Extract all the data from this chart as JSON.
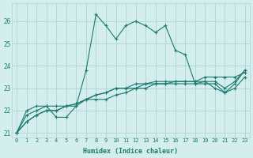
{
  "title": "",
  "xlabel": "Humidex (Indice chaleur)",
  "ylabel": "",
  "bg_color": "#d4eeee",
  "grid_color": "#aed4d4",
  "line_color": "#1a7a6e",
  "tick_color": "#1a7a6e",
  "xlim": [
    -0.5,
    23.5
  ],
  "ylim": [
    20.8,
    26.8
  ],
  "yticks": [
    21,
    22,
    23,
    24,
    25,
    26
  ],
  "xticks": [
    0,
    1,
    2,
    3,
    4,
    5,
    6,
    7,
    8,
    9,
    10,
    11,
    12,
    13,
    14,
    15,
    16,
    17,
    18,
    19,
    20,
    21,
    22,
    23
  ],
  "series": [
    [
      21.0,
      22.0,
      22.2,
      22.2,
      21.7,
      21.7,
      22.2,
      23.8,
      26.3,
      25.8,
      25.2,
      25.8,
      26.0,
      25.8,
      25.5,
      25.8,
      24.7,
      24.5,
      23.2,
      23.3,
      23.0,
      22.8,
      23.2,
      23.8
    ],
    [
      21.0,
      21.8,
      22.0,
      22.2,
      22.2,
      22.2,
      22.2,
      22.5,
      22.5,
      22.5,
      22.7,
      22.8,
      23.0,
      23.0,
      23.2,
      23.2,
      23.3,
      23.3,
      23.3,
      23.5,
      23.5,
      23.5,
      23.5,
      23.7
    ],
    [
      21.0,
      21.5,
      21.8,
      22.0,
      22.0,
      22.2,
      22.3,
      22.5,
      22.7,
      22.8,
      23.0,
      23.0,
      23.2,
      23.2,
      23.3,
      23.3,
      23.3,
      23.3,
      23.3,
      23.3,
      23.3,
      23.0,
      23.3,
      23.8
    ],
    [
      21.0,
      21.5,
      21.8,
      22.0,
      22.0,
      22.2,
      22.3,
      22.5,
      22.7,
      22.8,
      23.0,
      23.0,
      23.0,
      23.2,
      23.2,
      23.2,
      23.2,
      23.2,
      23.2,
      23.2,
      23.2,
      22.8,
      23.0,
      23.5
    ]
  ],
  "tick_fontsize": 5.0,
  "xlabel_fontsize": 6.0
}
